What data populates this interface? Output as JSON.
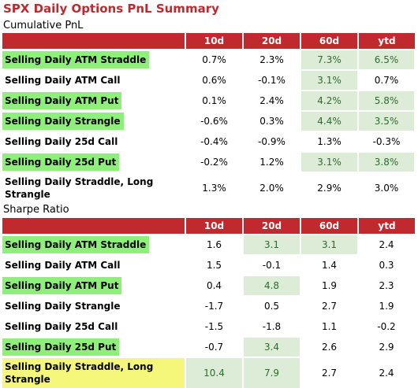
{
  "title": "SPX Daily Options PnL Summary",
  "tables": [
    {
      "label": "Cumulative PnL",
      "headers": [
        "",
        "10d",
        "20d",
        "60d",
        "ytd"
      ],
      "rows": [
        {
          "name": "Selling Daily ATM Straddle",
          "name_hl": "green",
          "values": [
            "0.7%",
            "2.3%",
            "7.3%",
            "6.5%"
          ],
          "value_hl": [
            false,
            false,
            true,
            true
          ]
        },
        {
          "name": "Selling Daily ATM Call",
          "name_hl": "",
          "values": [
            "0.6%",
            "-0.1%",
            "3.1%",
            "0.7%"
          ],
          "value_hl": [
            false,
            false,
            true,
            false
          ]
        },
        {
          "name": "Selling Daily ATM Put",
          "name_hl": "green",
          "values": [
            "0.1%",
            "2.4%",
            "4.2%",
            "5.8%"
          ],
          "value_hl": [
            false,
            false,
            true,
            true
          ]
        },
        {
          "name": "Selling Daily Strangle",
          "name_hl": "green",
          "values": [
            "-0.6%",
            "0.3%",
            "4.4%",
            "3.5%"
          ],
          "value_hl": [
            false,
            false,
            true,
            true
          ]
        },
        {
          "name": "Selling Daily 25d Call",
          "name_hl": "",
          "values": [
            "-0.4%",
            "-0.9%",
            "1.3%",
            "-0.3%"
          ],
          "value_hl": [
            false,
            false,
            false,
            false
          ]
        },
        {
          "name": "Selling Daily 25d Put",
          "name_hl": "green",
          "values": [
            "-0.2%",
            "1.2%",
            "3.1%",
            "3.8%"
          ],
          "value_hl": [
            false,
            false,
            true,
            true
          ]
        },
        {
          "name": "Selling Daily Straddle, Long Strangle",
          "name_hl": "",
          "values": [
            "1.3%",
            "2.0%",
            "2.9%",
            "3.0%"
          ],
          "value_hl": [
            false,
            false,
            false,
            false
          ]
        }
      ]
    },
    {
      "label": "Sharpe Ratio",
      "headers": [
        "",
        "10d",
        "20d",
        "60d",
        "ytd"
      ],
      "rows": [
        {
          "name": "Selling Daily ATM Straddle",
          "name_hl": "green",
          "values": [
            "1.6",
            "3.1",
            "3.1",
            "2.4"
          ],
          "value_hl": [
            false,
            true,
            true,
            false
          ]
        },
        {
          "name": "Selling Daily ATM Call",
          "name_hl": "",
          "values": [
            "1.5",
            "-0.1",
            "1.4",
            "0.3"
          ],
          "value_hl": [
            false,
            false,
            false,
            false
          ]
        },
        {
          "name": "Selling Daily ATM Put",
          "name_hl": "green",
          "values": [
            "0.4",
            "4.8",
            "1.9",
            "2.3"
          ],
          "value_hl": [
            false,
            true,
            false,
            false
          ]
        },
        {
          "name": "Selling Daily Strangle",
          "name_hl": "",
          "values": [
            "-1.7",
            "0.5",
            "2.7",
            "1.9"
          ],
          "value_hl": [
            false,
            false,
            false,
            false
          ]
        },
        {
          "name": "Selling Daily 25d Call",
          "name_hl": "",
          "values": [
            "-1.5",
            "-1.8",
            "1.1",
            "-0.2"
          ],
          "value_hl": [
            false,
            false,
            false,
            false
          ]
        },
        {
          "name": "Selling Daily 25d Put",
          "name_hl": "green",
          "values": [
            "-0.7",
            "3.4",
            "2.6",
            "2.9"
          ],
          "value_hl": [
            false,
            true,
            false,
            false
          ]
        },
        {
          "name": "Selling Daily Straddle, Long Strangle",
          "name_hl": "yellow",
          "values": [
            "10.4",
            "7.9",
            "2.7",
            "2.4"
          ],
          "value_hl": [
            true,
            true,
            false,
            false
          ]
        }
      ]
    }
  ],
  "colors": {
    "accent_red": "#c0292e",
    "label_green": "#8ef07a",
    "label_yellow": "#f4f77a",
    "cell_green_bg": "#dcecd7",
    "cell_green_text": "#2e6b2e"
  }
}
